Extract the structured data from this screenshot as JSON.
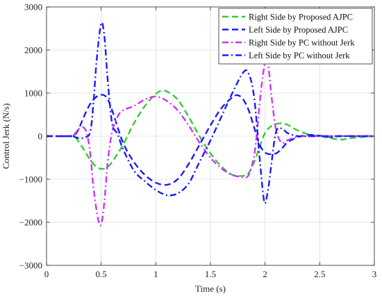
{
  "chart_data": {
    "type": "line",
    "title": "",
    "xlabel": "Time (s)",
    "ylabel": "Control Jerk (N/s)",
    "xlim": [
      0,
      3
    ],
    "ylim": [
      -3000,
      3000
    ],
    "xticks": [
      0,
      0.5,
      1,
      1.5,
      2,
      2.5,
      3
    ],
    "xtick_labels": [
      "0",
      "0.5",
      "1",
      "1.5",
      "2",
      "2.5",
      "3"
    ],
    "yticks": [
      -3000,
      -2000,
      -1000,
      0,
      1000,
      2000,
      3000
    ],
    "ytick_labels": [
      "−3000",
      "−2000",
      "−1000",
      "0",
      "1000",
      "2000",
      "3000"
    ],
    "grid": true,
    "legend_position": "top-right",
    "series": [
      {
        "name": "Right Side by Proposed AJPC",
        "color": "#33cc33",
        "dash": "dashed",
        "x": [
          0,
          0.22,
          0.26,
          0.3,
          0.35,
          0.4,
          0.45,
          0.5,
          0.55,
          0.6,
          0.7,
          0.8,
          0.9,
          1.0,
          1.05,
          1.1,
          1.2,
          1.3,
          1.4,
          1.5,
          1.6,
          1.7,
          1.8,
          1.85,
          1.9,
          1.95,
          2.0,
          2.05,
          2.1,
          2.15,
          2.2,
          2.25,
          2.3,
          2.4,
          2.5,
          2.6,
          2.7,
          2.8,
          3.0
        ],
        "y": [
          0,
          0,
          -20,
          -150,
          -350,
          -550,
          -700,
          -760,
          -730,
          -600,
          -200,
          300,
          700,
          980,
          1050,
          1040,
          850,
          450,
          0,
          -400,
          -700,
          -900,
          -920,
          -850,
          -600,
          -250,
          80,
          220,
          280,
          300,
          270,
          200,
          130,
          40,
          0,
          -50,
          -80,
          -40,
          0
        ]
      },
      {
        "name": "Left Side by Proposed AJPC",
        "color": "#1a1aff",
        "dash": "dashed",
        "x": [
          0,
          0.22,
          0.26,
          0.3,
          0.35,
          0.4,
          0.45,
          0.5,
          0.55,
          0.6,
          0.7,
          0.8,
          0.9,
          1.0,
          1.1,
          1.2,
          1.3,
          1.4,
          1.5,
          1.6,
          1.7,
          1.75,
          1.8,
          1.85,
          1.9,
          1.95,
          2.0,
          2.05,
          2.1,
          2.15,
          2.2,
          2.25,
          2.3,
          2.4,
          2.5,
          2.6,
          2.7,
          3.0
        ],
        "y": [
          0,
          0,
          30,
          200,
          500,
          750,
          900,
          960,
          900,
          600,
          -150,
          -600,
          -900,
          -1080,
          -1130,
          -1000,
          -650,
          -200,
          250,
          650,
          900,
          950,
          850,
          600,
          200,
          -200,
          -380,
          -420,
          -400,
          -300,
          -150,
          -80,
          -20,
          30,
          10,
          -20,
          0,
          0
        ]
      },
      {
        "name": "Right Side by PC without Jerk",
        "color": "#cc33ff",
        "dash": "dashdot",
        "x": [
          0,
          0.22,
          0.26,
          0.3,
          0.34,
          0.37,
          0.4,
          0.43,
          0.47,
          0.5,
          0.53,
          0.56,
          0.6,
          0.65,
          0.7,
          0.8,
          0.9,
          1.0,
          1.1,
          1.2,
          1.3,
          1.4,
          1.5,
          1.6,
          1.7,
          1.8,
          1.85,
          1.9,
          1.93,
          1.96,
          2.0,
          2.03,
          2.06,
          2.1,
          2.15,
          2.2,
          2.25,
          2.3,
          2.4,
          3.0
        ],
        "y": [
          0,
          0,
          60,
          180,
          200,
          50,
          -400,
          -1200,
          -1900,
          -2050,
          -1500,
          -600,
          100,
          450,
          600,
          700,
          850,
          920,
          820,
          600,
          250,
          -150,
          -500,
          -750,
          -900,
          -950,
          -900,
          -450,
          200,
          1000,
          1720,
          1600,
          900,
          150,
          -150,
          -100,
          -50,
          -20,
          0,
          0
        ]
      },
      {
        "name": "Left Side by PC without Jerk",
        "color": "#1a1aff",
        "dash": "dashdot",
        "x": [
          0,
          0.22,
          0.26,
          0.3,
          0.35,
          0.4,
          0.43,
          0.46,
          0.5,
          0.53,
          0.56,
          0.6,
          0.65,
          0.7,
          0.8,
          0.9,
          1.0,
          1.1,
          1.2,
          1.3,
          1.4,
          1.5,
          1.6,
          1.7,
          1.8,
          1.85,
          1.9,
          1.95,
          1.98,
          2.0,
          2.03,
          2.06,
          2.1,
          2.15,
          2.2,
          2.25,
          2.3,
          2.4,
          3.0
        ],
        "y": [
          0,
          0,
          -20,
          -50,
          -30,
          100,
          800,
          1800,
          2620,
          2300,
          1300,
          300,
          50,
          -300,
          -800,
          -1050,
          -1250,
          -1370,
          -1330,
          -1100,
          -600,
          -100,
          450,
          1000,
          1480,
          1450,
          900,
          -500,
          -1300,
          -1560,
          -1200,
          -600,
          100,
          180,
          80,
          30,
          0,
          0,
          0
        ]
      }
    ]
  }
}
